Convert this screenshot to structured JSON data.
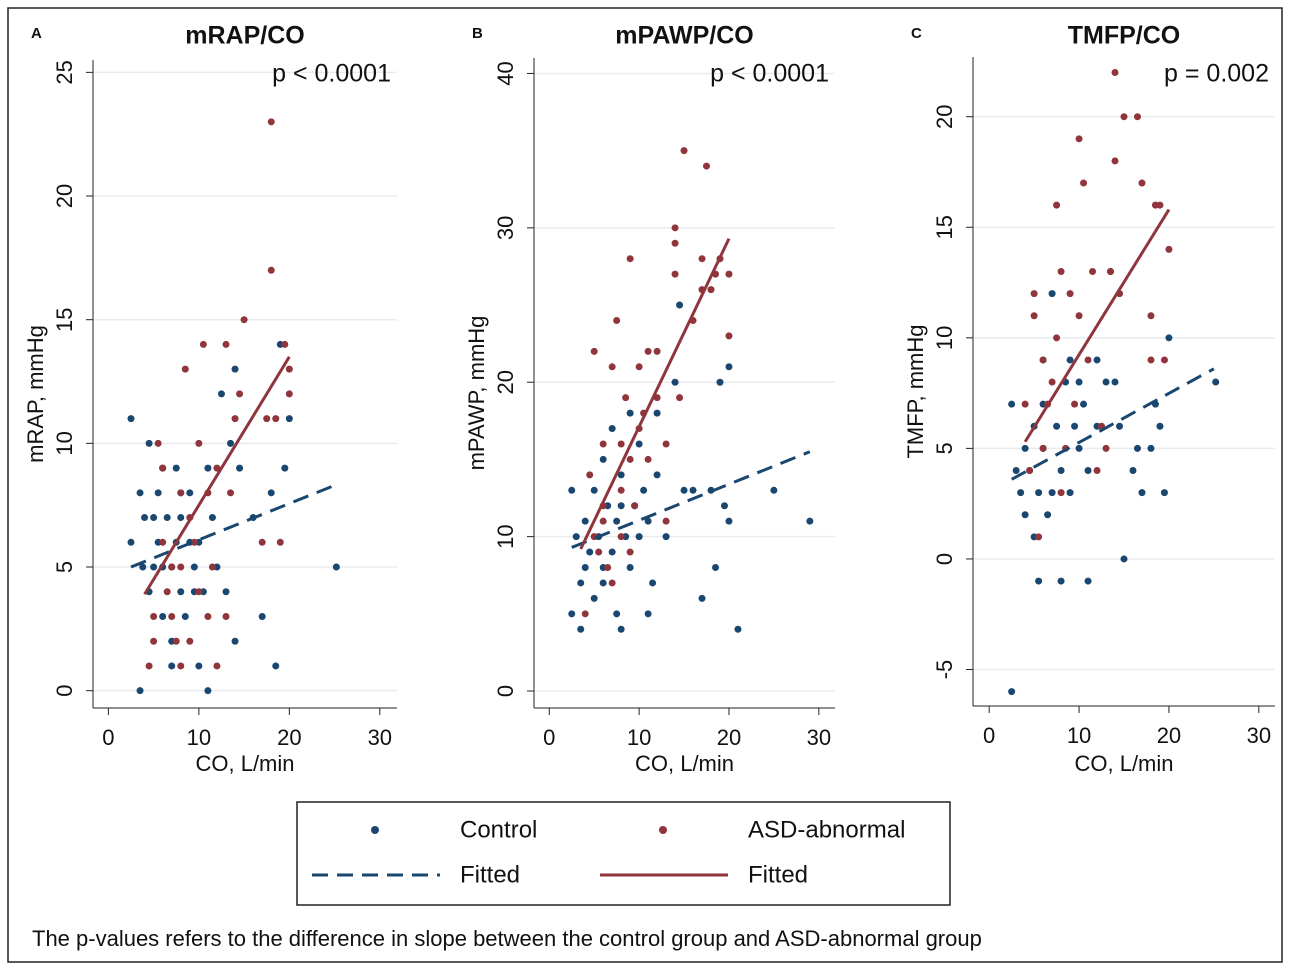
{
  "chart_data": [
    {
      "type": "scatter",
      "label": "A",
      "title": "mRAP/CO",
      "annotation": "p < 0.0001",
      "xlabel": "CO, L/min",
      "ylabel": "mRAP, mmHg",
      "xlim": [
        -1.7,
        31.9
      ],
      "ylim": [
        -0.7,
        25.5
      ],
      "xticks": [
        0,
        10,
        20,
        30
      ],
      "yticks": [
        0,
        5,
        10,
        15,
        20,
        25
      ],
      "grid": true,
      "series": [
        {
          "name": "Control",
          "color": "#1a476f",
          "x": [
            2.5,
            2.5,
            3.5,
            3.5,
            3.8,
            4,
            4.5,
            4.5,
            5,
            5,
            5.5,
            5.5,
            6,
            6,
            6.5,
            7,
            7,
            7.5,
            7.5,
            8,
            8,
            8.5,
            9,
            9,
            9.5,
            10,
            10.5,
            11,
            11,
            11.5,
            12,
            12.5,
            13,
            13.5,
            14,
            14,
            14.5,
            16,
            17,
            18,
            18.5,
            19,
            19.5,
            20,
            25.2,
            7,
            9.5,
            10,
            6,
            8
          ],
          "values": [
            11,
            6,
            0,
            8,
            5,
            7,
            4,
            10,
            7,
            5,
            6,
            8,
            9,
            3,
            7,
            5,
            2,
            6,
            9,
            4,
            7,
            3,
            6,
            8,
            5,
            1,
            4,
            0,
            9,
            7,
            5,
            12,
            4,
            10,
            13,
            2,
            9,
            7,
            3,
            8,
            1,
            14,
            9,
            11,
            5,
            1,
            4,
            6,
            5,
            8
          ]
        },
        {
          "name": "ASD-abnormal",
          "color": "#90353b",
          "x": [
            4.5,
            5,
            5,
            5.5,
            6,
            6,
            6.5,
            7,
            7.5,
            8,
            8,
            8.5,
            9,
            9.5,
            10,
            10,
            10.5,
            11,
            11,
            12,
            12,
            13,
            13,
            13.5,
            14,
            14.5,
            15,
            17,
            17.5,
            18,
            18,
            18.5,
            19,
            19.5,
            20,
            20,
            8,
            9,
            7,
            11.5
          ],
          "values": [
            1,
            3,
            2,
            10,
            9,
            6,
            4,
            3,
            2,
            8,
            5,
            13,
            2,
            6,
            10,
            4,
            14,
            3,
            8,
            9,
            1,
            3,
            14,
            8,
            11,
            12,
            15,
            6,
            11,
            23,
            17,
            11,
            6,
            14,
            13,
            12,
            1,
            7,
            5,
            5
          ]
        },
        {
          "name": "Fitted",
          "type": "line",
          "dash": true,
          "color": "#1a476f",
          "x": [
            2.5,
            25
          ],
          "values": [
            5,
            8.3
          ]
        },
        {
          "name": "Fitted",
          "type": "line",
          "dash": false,
          "color": "#90353b",
          "x": [
            4,
            20
          ],
          "values": [
            3.9,
            13.5
          ]
        }
      ]
    },
    {
      "type": "scatter",
      "label": "B",
      "title": "mPAWP/CO",
      "annotation": "p < 0.0001",
      "xlabel": "CO, L/min",
      "ylabel": "mPAWP, mmHg",
      "xlim": [
        -1.7,
        31.8
      ],
      "ylim": [
        -1.1,
        41
      ],
      "xticks": [
        0,
        10,
        20,
        30
      ],
      "yticks": [
        0,
        10,
        20,
        30,
        40
      ],
      "grid": true,
      "series": [
        {
          "name": "Control",
          "color": "#1a476f",
          "x": [
            2.5,
            2.5,
            3,
            3.5,
            3.5,
            4,
            4,
            4.5,
            5,
            5,
            5.5,
            6,
            6,
            6.5,
            7,
            7,
            7.5,
            7.5,
            8,
            8,
            8.5,
            9,
            9,
            9.5,
            10,
            10,
            10.5,
            11,
            11,
            11.5,
            12,
            12,
            13,
            14,
            14.5,
            15,
            16,
            17,
            18,
            18.5,
            19,
            19.5,
            20,
            20,
            21,
            25,
            29,
            6,
            8
          ],
          "values": [
            13,
            5,
            10,
            4,
            7,
            8,
            11,
            9,
            13,
            6,
            10,
            7,
            15,
            12,
            17,
            9,
            5,
            11,
            4,
            14,
            10,
            18,
            8,
            12,
            16,
            10,
            13,
            5,
            11,
            7,
            18,
            14,
            10,
            20,
            25,
            13,
            13,
            6,
            13,
            8,
            20,
            12,
            11,
            21,
            4,
            13,
            11,
            8,
            12
          ]
        },
        {
          "name": "ASD-abnormal",
          "color": "#90353b",
          "x": [
            4,
            4.5,
            5,
            5,
            5.5,
            6,
            6,
            6.5,
            7,
            7,
            7.5,
            8,
            8,
            8.5,
            9,
            9,
            9.5,
            10,
            10,
            10.5,
            11,
            11,
            12,
            12,
            13,
            13,
            14,
            14,
            14,
            14.5,
            15,
            16,
            17,
            17,
            17.5,
            18,
            18.5,
            19,
            20,
            20,
            6,
            9,
            8
          ],
          "values": [
            5,
            14,
            10,
            22,
            9,
            16,
            11,
            8,
            21,
            7,
            24,
            16,
            10,
            19,
            15,
            28,
            12,
            17,
            21,
            18,
            22,
            15,
            22,
            19,
            11,
            16,
            27,
            29,
            30,
            19,
            35,
            24,
            26,
            28,
            34,
            26,
            27,
            28,
            27,
            23,
            12,
            9,
            13
          ]
        },
        {
          "name": "Fitted",
          "type": "line",
          "dash": true,
          "color": "#1a476f",
          "x": [
            2.5,
            29
          ],
          "values": [
            9.3,
            15.5
          ]
        },
        {
          "name": "Fitted",
          "type": "line",
          "dash": false,
          "color": "#90353b",
          "x": [
            3.5,
            20
          ],
          "values": [
            9.2,
            29.3
          ]
        }
      ]
    },
    {
      "type": "scatter",
      "label": "C",
      "title": "TMFP/CO",
      "annotation": "p = 0.002",
      "xlabel": "CO, L/min",
      "ylabel": "TMFP, mmHg",
      "xlim": [
        -1.8,
        31.8
      ],
      "ylim": [
        -6.65,
        22.7
      ],
      "xticks": [
        0,
        10,
        20,
        30
      ],
      "yticks": [
        -5,
        0,
        5,
        10,
        15,
        20
      ],
      "grid": true,
      "series": [
        {
          "name": "Control",
          "color": "#1a476f",
          "x": [
            2.5,
            2.5,
            3,
            3.5,
            4,
            4,
            4.5,
            5,
            5,
            5.5,
            5.5,
            6,
            6,
            6.5,
            7,
            7,
            7.5,
            8,
            8,
            8.5,
            9,
            9.5,
            10,
            10,
            10.5,
            11,
            11,
            12,
            12,
            13,
            13.5,
            14,
            14.5,
            15,
            16,
            16.5,
            17,
            18,
            18.5,
            19,
            19.5,
            20,
            25.2,
            6,
            9
          ],
          "values": [
            7,
            -6,
            4,
            3,
            2,
            5,
            4,
            1,
            6,
            3,
            -1,
            5,
            9,
            2,
            3,
            12,
            6,
            -1,
            4,
            8,
            9,
            6,
            5,
            8,
            7,
            -1,
            4,
            6,
            9,
            8,
            13,
            8,
            6,
            0,
            4,
            5,
            3,
            5,
            7,
            6,
            3,
            10,
            8,
            7,
            3
          ]
        },
        {
          "name": "ASD-abnormal",
          "color": "#90353b",
          "x": [
            4,
            4.5,
            5,
            5,
            5.5,
            6,
            6.5,
            7,
            7.5,
            7.5,
            8,
            8,
            9,
            9.5,
            10,
            10,
            10.5,
            11,
            11.5,
            12,
            12.5,
            13,
            13.5,
            14,
            14,
            14.5,
            15,
            16.5,
            17,
            18,
            18,
            18.5,
            19,
            19.5,
            20,
            6,
            8.5
          ],
          "values": [
            7,
            4,
            12,
            11,
            1,
            5,
            7,
            8,
            16,
            10,
            13,
            3,
            12,
            7,
            19,
            11,
            17,
            9,
            13,
            4,
            6,
            5,
            13,
            22,
            18,
            12,
            20,
            20,
            17,
            11,
            9,
            16,
            16,
            9,
            14,
            9,
            5
          ]
        },
        {
          "name": "Fitted",
          "type": "line",
          "dash": true,
          "color": "#1a476f",
          "x": [
            2.5,
            25
          ],
          "values": [
            3.6,
            8.6
          ]
        },
        {
          "name": "Fitted",
          "type": "line",
          "dash": false,
          "color": "#90353b",
          "x": [
            4,
            20
          ],
          "values": [
            5.3,
            15.8
          ]
        }
      ]
    }
  ],
  "caption": "The p-values refers to the difference in slope between the control group and ASD-abnormal group"
}
